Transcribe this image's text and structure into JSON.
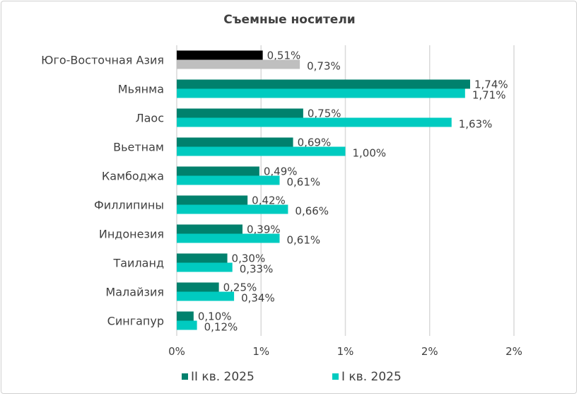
{
  "chart_data": {
    "type": "bar",
    "orientation": "horizontal",
    "title": "Съемные носители",
    "categories": [
      "Юго-Восточная Азия",
      "Мьянма",
      "Лаос",
      "Вьетнам",
      "Камбоджа",
      "Филлипины",
      "Индонезия",
      "Таиланд",
      "Малайзия",
      "Сингапур"
    ],
    "series": [
      {
        "name": "II кв. 2025",
        "color": "#00816d",
        "values": [
          0.51,
          1.74,
          0.75,
          0.69,
          0.49,
          0.42,
          0.39,
          0.3,
          0.25,
          0.1
        ],
        "labels": [
          "0,51%",
          "1,74%",
          "0,75%",
          "0,69%",
          "0,49%",
          "0,42%",
          "0,39%",
          "0,30%",
          "0,25%",
          "0,10%"
        ]
      },
      {
        "name": "I кв. 2025",
        "color": "#00cbc0",
        "values": [
          0.73,
          1.71,
          1.63,
          1.0,
          0.61,
          0.66,
          0.61,
          0.33,
          0.34,
          0.12
        ],
        "labels": [
          "0,73%",
          "1,71%",
          "1,63%",
          "1,00%",
          "0,61%",
          "0,66%",
          "0,61%",
          "0,33%",
          "0,34%",
          "0,12%"
        ]
      }
    ],
    "highlight_colors": {
      "II кв. 2025": "#000000",
      "I кв. 2025": "#bfbfbf"
    },
    "xlim": [
      0,
      2
    ],
    "xticks": [
      0,
      0.5,
      1,
      1.5,
      2
    ],
    "xtick_labels": [
      "0%",
      "1%",
      "1%",
      "2%",
      "2%"
    ],
    "grid": "vertical",
    "legend_position": "bottom"
  }
}
